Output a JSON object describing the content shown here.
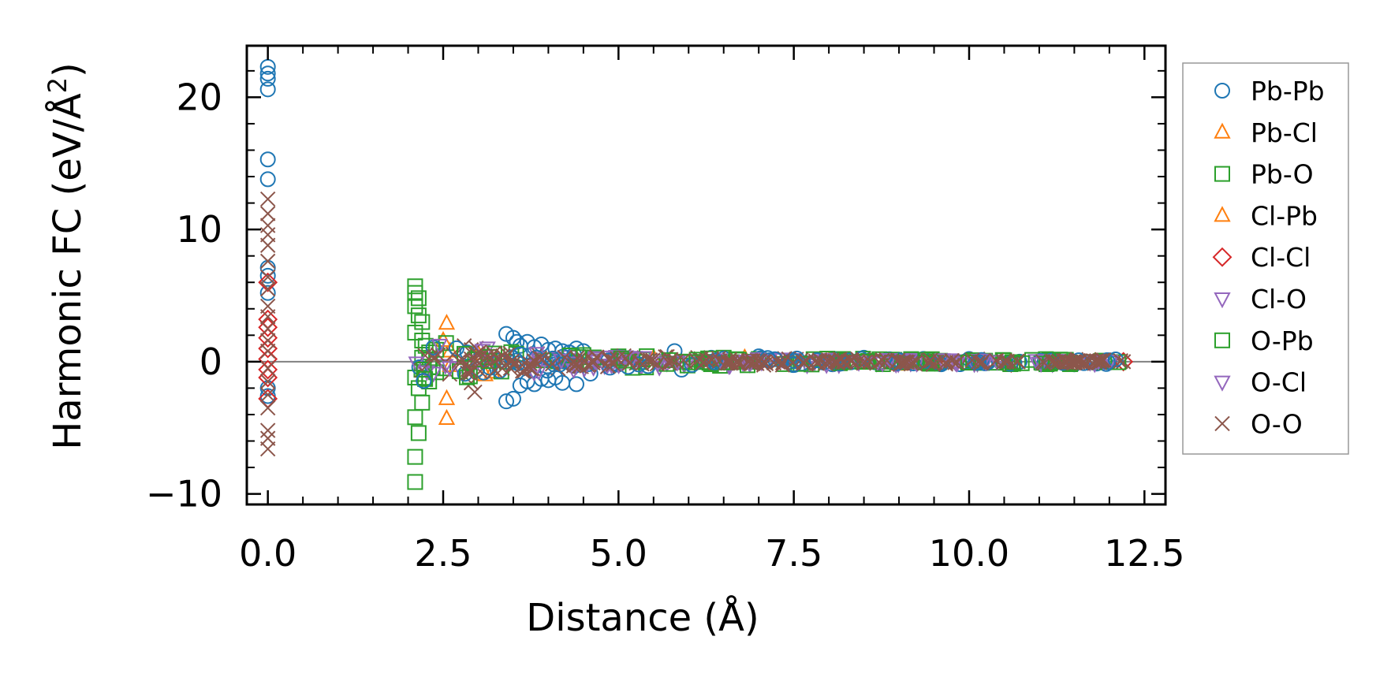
{
  "chart_data": {
    "type": "scatter",
    "title": "",
    "xlabel": "Distance (Å)",
    "ylabel_main": "Harmonic FC (eV/Å",
    "ylabel_sup": "2",
    "ylabel_close": ")",
    "xlim": [
      -0.3,
      12.8
    ],
    "ylim": [
      -10.8,
      23.9
    ],
    "xticks": [
      0.0,
      2.5,
      5.0,
      7.5,
      10.0,
      12.5
    ],
    "xtick_labels": [
      "0.0",
      "2.5",
      "5.0",
      "7.5",
      "10.0",
      "12.5"
    ],
    "yticks": [
      -10,
      0,
      10,
      20
    ],
    "ytick_labels": [
      "−10",
      "0",
      "10",
      "20"
    ],
    "zero_line": true,
    "legend_position": "outside-right",
    "series": [
      {
        "name": "Pb-Pb",
        "marker": "circle",
        "color": "#1f77b4",
        "points": [
          [
            0,
            22.3
          ],
          [
            0,
            21.8
          ],
          [
            0,
            21.4
          ],
          [
            0,
            20.6
          ],
          [
            0,
            15.3
          ],
          [
            0,
            13.8
          ],
          [
            0,
            7.1
          ],
          [
            0,
            6.5
          ],
          [
            0,
            5.2
          ],
          [
            0,
            -2.0
          ],
          [
            0,
            -2.6
          ],
          [
            3.4,
            2.1
          ],
          [
            3.5,
            1.8
          ],
          [
            3.55,
            1.5
          ],
          [
            3.6,
            1.2
          ],
          [
            3.7,
            1.5
          ],
          [
            3.8,
            1.1
          ],
          [
            3.9,
            1.3
          ],
          [
            4.0,
            0.9
          ],
          [
            4.1,
            1.0
          ],
          [
            4.2,
            0.8
          ],
          [
            4.3,
            0.7
          ],
          [
            4.4,
            1.0
          ],
          [
            4.5,
            0.8
          ],
          [
            3.4,
            -3.0
          ],
          [
            3.5,
            -2.8
          ],
          [
            3.6,
            -1.8
          ],
          [
            3.7,
            -1.5
          ],
          [
            3.8,
            -1.7
          ],
          [
            3.9,
            -1.3
          ],
          [
            4.0,
            -1.4
          ],
          [
            4.1,
            -1.2
          ],
          [
            4.2,
            -1.6
          ],
          [
            4.4,
            -1.7
          ],
          [
            4.6,
            -0.9
          ],
          [
            5.8,
            0.8
          ],
          [
            5.9,
            -0.6
          ],
          [
            7.0,
            0.4
          ],
          [
            8.5,
            0.3
          ],
          [
            10.0,
            0.2
          ],
          [
            11.5,
            -0.2
          ],
          [
            12.0,
            0.1
          ]
        ]
      },
      {
        "name": "Pb-Cl",
        "marker": "triangle-up",
        "color": "#ff7f0e",
        "points": [
          [
            2.55,
            2.9
          ],
          [
            2.5,
            1.6
          ],
          [
            2.55,
            -2.8
          ],
          [
            2.55,
            -4.3
          ],
          [
            2.6,
            0.8
          ],
          [
            3.1,
            -1.0
          ],
          [
            3.0,
            0.6
          ],
          [
            6.8,
            0.3
          ],
          [
            9.0,
            -0.2
          ]
        ]
      },
      {
        "name": "Pb-O",
        "marker": "square",
        "color": "#2ca02c",
        "points": [
          [
            2.1,
            5.7
          ],
          [
            2.1,
            5.2
          ],
          [
            2.15,
            4.8
          ],
          [
            2.1,
            4.2
          ],
          [
            2.15,
            3.5
          ],
          [
            2.2,
            3.0
          ],
          [
            2.1,
            2.2
          ],
          [
            2.2,
            1.6
          ],
          [
            2.25,
            1.2
          ],
          [
            2.3,
            0.7
          ],
          [
            2.1,
            -1.2
          ],
          [
            2.15,
            -2.0
          ],
          [
            2.2,
            -3.1
          ],
          [
            2.1,
            -4.2
          ],
          [
            2.15,
            -5.4
          ],
          [
            2.1,
            -7.2
          ],
          [
            2.1,
            -9.1
          ],
          [
            2.3,
            -1.5
          ],
          [
            2.4,
            -0.8
          ],
          [
            2.4,
            0.9
          ],
          [
            2.5,
            -0.5
          ],
          [
            4.5,
            0.5
          ],
          [
            4.6,
            0.0
          ],
          [
            7.0,
            0.2
          ],
          [
            10.5,
            0.1
          ]
        ]
      },
      {
        "name": "Cl-Pb",
        "marker": "triangle-up",
        "color": "#ff7f0e",
        "points": [
          [
            2.6,
            -0.3
          ],
          [
            3.2,
            -0.8
          ],
          [
            5.5,
            0.3
          ],
          [
            8.0,
            0.1
          ]
        ]
      },
      {
        "name": "Cl-Cl",
        "marker": "diamond",
        "color": "#d62728",
        "points": [
          [
            0,
            6.0
          ],
          [
            0,
            3.2
          ],
          [
            0,
            2.6
          ],
          [
            0,
            1.8
          ],
          [
            0,
            1.0
          ],
          [
            0,
            0.2
          ],
          [
            0,
            -0.6
          ],
          [
            0,
            -1.2
          ],
          [
            0,
            -2.8
          ],
          [
            11.8,
            0.0
          ],
          [
            12.2,
            0.0
          ],
          [
            10.6,
            -0.1
          ],
          [
            9.5,
            0.0
          ]
        ]
      },
      {
        "name": "Cl-O",
        "marker": "triangle-down",
        "color": "#9467bd",
        "points": [
          [
            4.3,
            0.4
          ],
          [
            4.8,
            -0.3
          ],
          [
            5.2,
            0.2
          ],
          [
            6.0,
            0.1
          ],
          [
            7.3,
            0.2
          ],
          [
            8.6,
            0.1
          ],
          [
            9.8,
            0.0
          ],
          [
            11.0,
            -0.1
          ]
        ]
      },
      {
        "name": "O-Pb",
        "marker": "square",
        "color": "#2ca02c",
        "points": [
          [
            2.2,
            0.3
          ],
          [
            2.35,
            -0.4
          ],
          [
            3.0,
            0.2
          ],
          [
            5.0,
            0.4
          ],
          [
            6.5,
            0.3
          ],
          [
            8.2,
            0.2
          ],
          [
            11.2,
            0.1
          ]
        ]
      },
      {
        "name": "O-Cl",
        "marker": "triangle-down",
        "color": "#9467bd",
        "points": [
          [
            4.4,
            -0.3
          ],
          [
            5.6,
            0.1
          ],
          [
            7.8,
            0.0
          ],
          [
            10.2,
            0.1
          ]
        ]
      },
      {
        "name": "O-O",
        "marker": "x",
        "color": "#8c564b",
        "points": [
          [
            0,
            12.3
          ],
          [
            0,
            11.2
          ],
          [
            0,
            10.3
          ],
          [
            0,
            9.6
          ],
          [
            0,
            8.8
          ],
          [
            0,
            7.6
          ],
          [
            0,
            6.4
          ],
          [
            0,
            5.5
          ],
          [
            0,
            4.2
          ],
          [
            0,
            3.4
          ],
          [
            0,
            2.5
          ],
          [
            0,
            1.6
          ],
          [
            0,
            0.8
          ],
          [
            0,
            -0.5
          ],
          [
            0,
            -1.5
          ],
          [
            0,
            -2.5
          ],
          [
            0,
            -3.5
          ],
          [
            0,
            -5.2
          ],
          [
            0,
            -5.8
          ],
          [
            0,
            -6.6
          ],
          [
            2.8,
            1.2
          ],
          [
            2.9,
            0.9
          ],
          [
            2.85,
            -0.6
          ],
          [
            2.9,
            -1.6
          ],
          [
            2.95,
            -2.3
          ],
          [
            3.0,
            0.5
          ],
          [
            3.2,
            0.2
          ],
          [
            3.5,
            -0.4
          ],
          [
            4.0,
            0.3
          ],
          [
            4.5,
            0.1
          ],
          [
            5.5,
            -0.1
          ],
          [
            6.5,
            0.1
          ],
          [
            7.5,
            0.0
          ],
          [
            8.5,
            0.0
          ],
          [
            9.5,
            0.0
          ],
          [
            10.5,
            0.0
          ],
          [
            11.5,
            0.0
          ],
          [
            12.2,
            0.0
          ]
        ]
      }
    ]
  }
}
